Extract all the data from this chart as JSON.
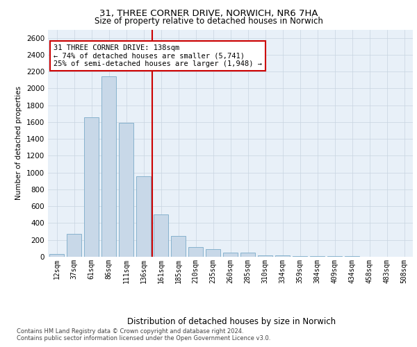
{
  "title1": "31, THREE CORNER DRIVE, NORWICH, NR6 7HA",
  "title2": "Size of property relative to detached houses in Norwich",
  "xlabel": "Distribution of detached houses by size in Norwich",
  "ylabel": "Number of detached properties",
  "categories": [
    "12sqm",
    "37sqm",
    "61sqm",
    "86sqm",
    "111sqm",
    "136sqm",
    "161sqm",
    "185sqm",
    "210sqm",
    "235sqm",
    "260sqm",
    "285sqm",
    "310sqm",
    "334sqm",
    "359sqm",
    "384sqm",
    "409sqm",
    "434sqm",
    "458sqm",
    "483sqm",
    "508sqm"
  ],
  "values": [
    30,
    270,
    1660,
    2140,
    1590,
    960,
    500,
    245,
    115,
    90,
    50,
    50,
    20,
    20,
    10,
    10,
    5,
    5,
    2,
    2,
    2
  ],
  "bar_color": "#c8d8e8",
  "bar_edge_color": "#7aaac8",
  "vline_x": 5.5,
  "vline_color": "#cc0000",
  "annotation_text": "31 THREE CORNER DRIVE: 138sqm\n← 74% of detached houses are smaller (5,741)\n25% of semi-detached houses are larger (1,948) →",
  "annotation_box_color": "#ffffff",
  "annotation_box_edge": "#cc0000",
  "ylim": [
    0,
    2700
  ],
  "yticks": [
    0,
    200,
    400,
    600,
    800,
    1000,
    1200,
    1400,
    1600,
    1800,
    2000,
    2200,
    2400,
    2600
  ],
  "grid_color": "#c8d4e0",
  "background_color": "#e8f0f8",
  "footer1": "Contains HM Land Registry data © Crown copyright and database right 2024.",
  "footer2": "Contains public sector information licensed under the Open Government Licence v3.0."
}
